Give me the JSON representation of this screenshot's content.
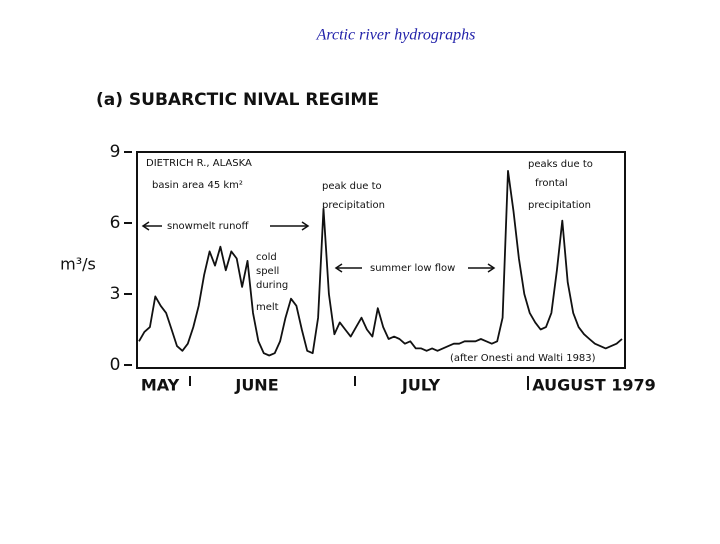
{
  "page_title": "Arctic river hydrographs",
  "chart_data": {
    "type": "line",
    "title": "(a) SUBARCTIC NIVAL REGIME",
    "y_label": "m³/s",
    "color": "#111111",
    "ylim": [
      0,
      9
    ],
    "yticks": [
      0,
      3,
      6,
      9
    ],
    "x_labels": [
      "MAY",
      "JUNE",
      "JULY",
      "AUGUST 1979"
    ],
    "values": [
      1.0,
      1.4,
      1.6,
      2.9,
      2.5,
      2.2,
      1.5,
      0.8,
      0.6,
      0.9,
      1.6,
      2.5,
      3.8,
      4.8,
      4.2,
      5.0,
      4.0,
      4.8,
      4.5,
      3.3,
      4.4,
      2.2,
      1.0,
      0.5,
      0.4,
      0.5,
      1.0,
      2.0,
      2.8,
      2.5,
      1.5,
      0.6,
      0.5,
      2.0,
      6.6,
      3.0,
      1.3,
      1.8,
      1.5,
      1.2,
      1.6,
      2.0,
      1.5,
      1.2,
      2.4,
      1.6,
      1.1,
      1.2,
      1.1,
      0.9,
      1.0,
      0.7,
      0.7,
      0.6,
      0.7,
      0.6,
      0.7,
      0.8,
      0.9,
      0.9,
      1.0,
      1.0,
      1.0,
      1.1,
      1.0,
      0.9,
      1.0,
      2.0,
      8.2,
      6.5,
      4.5,
      3.0,
      2.2,
      1.8,
      1.5,
      1.6,
      2.2,
      4.0,
      6.1,
      3.5,
      2.2,
      1.6,
      1.3,
      1.1,
      0.9,
      0.8,
      0.7,
      0.8,
      0.9,
      1.1
    ],
    "annotations": [
      "DIETRICH R., ALASKA",
      "basin area 45 km²",
      "peak due to",
      "precipitation",
      "peaks due to",
      "frontal",
      "precipitation",
      "snowmelt runoff",
      "cold",
      "spell",
      "during",
      "melt",
      "summer low flow",
      "(after Onesti and Walti 1983)"
    ]
  }
}
